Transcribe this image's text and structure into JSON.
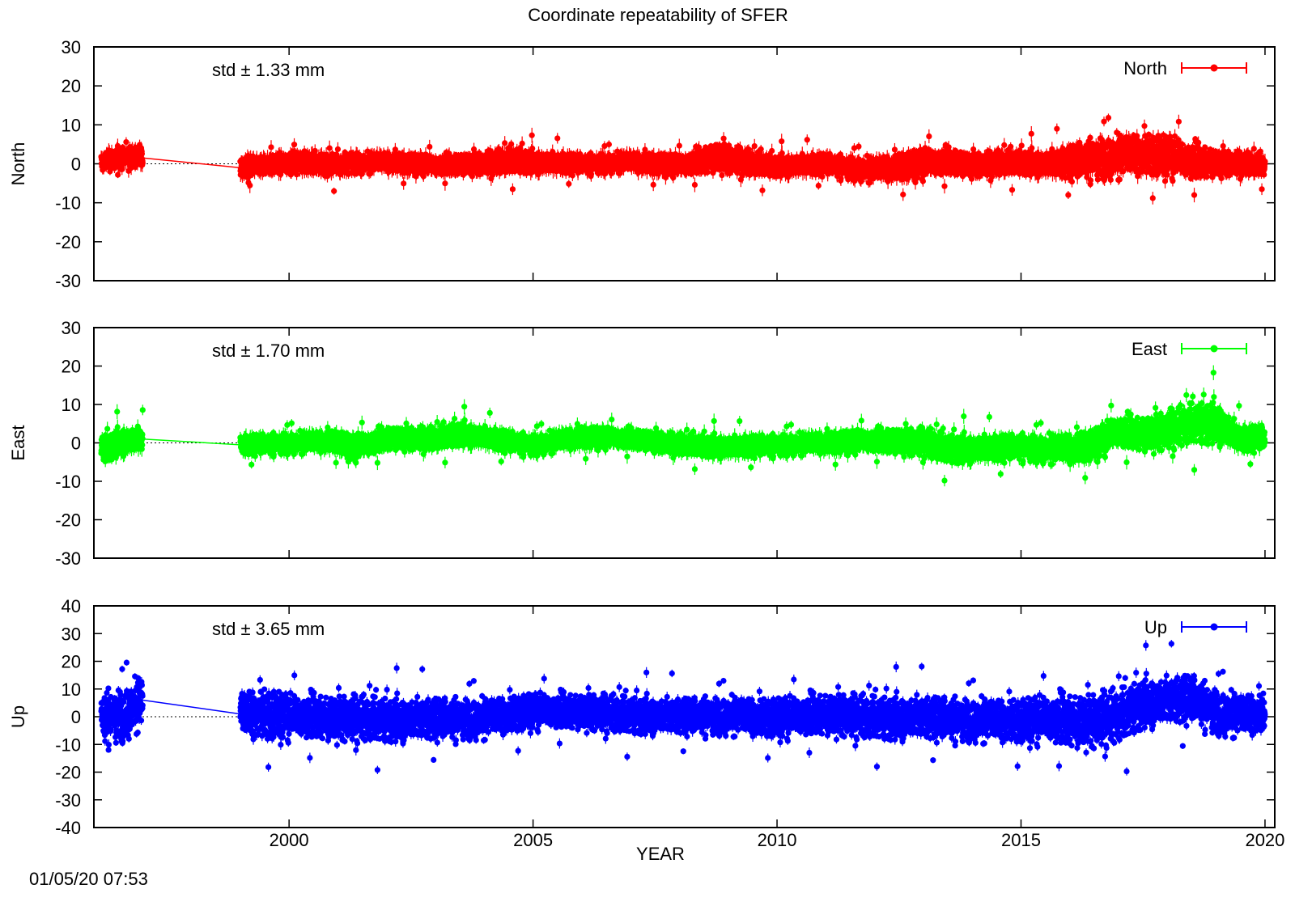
{
  "figure": {
    "title": "Coordinate repeatability of SFER",
    "xlabel": "YEAR",
    "timestamp": "01/05/20 07:53",
    "xticks": [
      "2000",
      "2005",
      "2010",
      "2015",
      "2020"
    ]
  },
  "panels": [
    {
      "ylabel": "North",
      "legend": "North",
      "std_text": "std ± 1.33 mm",
      "color": "#ff0000",
      "yticks": [
        "30",
        "20",
        "10",
        "0",
        "-10",
        "-20",
        "-30"
      ]
    },
    {
      "ylabel": "East",
      "legend": "East",
      "std_text": "std ± 1.70 mm",
      "color": "#00ff00",
      "yticks": [
        "30",
        "20",
        "10",
        "0",
        "-10",
        "-20",
        "-30"
      ]
    },
    {
      "ylabel": "Up",
      "legend": "Up",
      "std_text": "std ± 3.65 mm",
      "color": "#0000ff",
      "yticks": [
        "40",
        "30",
        "20",
        "10",
        "0",
        "-10",
        "-20",
        "-30",
        "-40"
      ]
    }
  ],
  "chart_data": {
    "type": "scatter",
    "title": "Coordinate repeatability of SFER",
    "xlabel": "YEAR",
    "xlim": [
      1996,
      2020.2
    ],
    "grid": false,
    "legend_position": "top-right",
    "gap": {
      "from": 1997.0,
      "to": 1999.0
    },
    "series": [
      {
        "name": "North",
        "ylabel": "North",
        "ylim": [
          -30,
          30
        ],
        "std_mm": 1.33,
        "x": [
          1996.2,
          1996.6,
          1997.0,
          1999.0,
          2000.0,
          2001.0,
          2002.0,
          2003.0,
          2004.0,
          2004.7,
          2005.0,
          2006.0,
          2007.0,
          2008.0,
          2008.8,
          2009.5,
          2010.0,
          2011.0,
          2011.5,
          2012.0,
          2013.0,
          2013.5,
          2014.0,
          2015.0,
          2015.5,
          2016.0,
          2016.5,
          2017.0,
          2017.5,
          2018.0,
          2018.5,
          2019.0,
          2019.5,
          2020.0
        ],
        "y": [
          0.5,
          2.0,
          1.5,
          -1.0,
          0.5,
          0.0,
          0.5,
          -0.5,
          0.0,
          1.0,
          0.5,
          0.0,
          0.5,
          -0.5,
          1.5,
          0.0,
          -0.5,
          0.0,
          -1.0,
          -1.5,
          0.0,
          0.5,
          -0.5,
          0.5,
          0.0,
          0.5,
          1.5,
          2.0,
          2.5,
          2.0,
          0.5,
          0.0,
          0.0,
          -0.5
        ],
        "scatter": [
          1.3,
          1.3,
          1.3,
          1.2,
          1.3,
          1.3,
          1.2,
          1.2,
          1.3,
          1.5,
          1.3,
          1.2,
          1.2,
          1.3,
          1.8,
          1.4,
          1.2,
          1.3,
          1.4,
          1.5,
          1.8,
          1.6,
          1.4,
          1.4,
          1.5,
          2.0,
          2.5,
          2.6,
          2.6,
          2.5,
          2.3,
          1.6,
          1.3,
          1.2
        ]
      },
      {
        "name": "East",
        "ylabel": "East",
        "ylim": [
          -30,
          30
        ],
        "std_mm": 1.7,
        "x": [
          1996.2,
          1996.6,
          1997.0,
          1999.0,
          2000.0,
          2001.0,
          2001.3,
          2002.0,
          2003.0,
          2003.5,
          2004.0,
          2004.7,
          2005.0,
          2006.0,
          2007.0,
          2008.0,
          2009.0,
          2010.0,
          2011.0,
          2012.0,
          2013.0,
          2013.5,
          2014.0,
          2015.0,
          2015.5,
          2016.0,
          2016.5,
          2017.0,
          2017.5,
          2018.0,
          2018.5,
          2019.0,
          2019.5,
          2020.0
        ],
        "y": [
          -1.5,
          0.5,
          1.0,
          -0.5,
          0.0,
          0.5,
          -1.5,
          1.0,
          1.0,
          2.5,
          1.5,
          0.0,
          -0.5,
          1.5,
          1.0,
          -0.5,
          -1.0,
          -0.5,
          0.0,
          0.5,
          0.0,
          -1.5,
          -1.5,
          -1.0,
          -1.5,
          -1.5,
          -0.5,
          3.0,
          2.0,
          3.0,
          5.0,
          5.5,
          1.0,
          1.5
        ],
        "scatter": [
          1.6,
          1.6,
          1.5,
          1.2,
          1.3,
          1.3,
          1.6,
          1.4,
          1.3,
          1.4,
          1.3,
          1.3,
          1.3,
          1.3,
          1.2,
          1.2,
          1.3,
          1.3,
          1.3,
          1.4,
          1.7,
          1.7,
          1.6,
          1.6,
          1.7,
          1.9,
          1.9,
          2.0,
          2.1,
          2.3,
          2.4,
          2.5,
          1.6,
          1.5
        ]
      },
      {
        "name": "Up",
        "ylabel": "Up",
        "ylim": [
          -40,
          40
        ],
        "std_mm": 3.65,
        "x": [
          1996.2,
          1996.6,
          1997.0,
          1999.0,
          1999.5,
          2000.0,
          2001.0,
          2002.0,
          2003.0,
          2004.0,
          2005.0,
          2006.0,
          2007.0,
          2008.0,
          2009.0,
          2010.0,
          2011.0,
          2012.0,
          2013.0,
          2014.0,
          2015.0,
          2015.5,
          2016.0,
          2016.5,
          2017.0,
          2017.5,
          2018.0,
          2018.5,
          2019.0,
          2019.5,
          2020.0
        ],
        "y": [
          0.0,
          1.0,
          6.0,
          1.0,
          1.0,
          0.0,
          -1.0,
          -1.0,
          -0.5,
          -0.5,
          2.0,
          1.5,
          0.5,
          0.5,
          0.5,
          -0.5,
          0.5,
          -0.5,
          0.0,
          -1.0,
          -1.5,
          -1.0,
          -2.0,
          -2.0,
          0.0,
          5.0,
          6.0,
          7.0,
          2.0,
          0.5,
          1.5
        ],
        "scatter": [
          4.5,
          4.5,
          4.5,
          4.0,
          4.5,
          3.8,
          3.8,
          3.6,
          3.5,
          3.4,
          3.0,
          3.0,
          3.0,
          3.0,
          3.2,
          3.4,
          3.5,
          3.5,
          3.6,
          3.6,
          3.8,
          4.0,
          4.5,
          4.5,
          4.4,
          4.0,
          4.0,
          4.0,
          3.8,
          3.6,
          3.5
        ]
      }
    ]
  }
}
